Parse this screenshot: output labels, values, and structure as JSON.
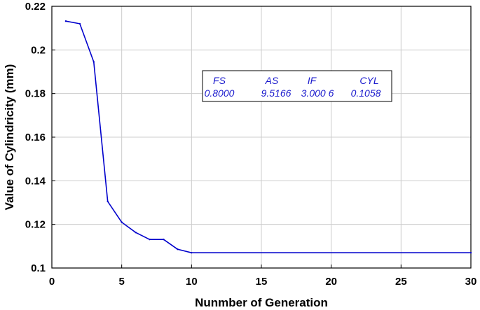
{
  "chart_data": {
    "type": "line",
    "title": "",
    "xlabel": "Nunmber of Generation",
    "ylabel": "Value of Cylindricity (mm)",
    "xlim": [
      0,
      30
    ],
    "ylim": [
      0.1,
      0.22
    ],
    "xticks": [
      "0",
      "5",
      "10",
      "15",
      "20",
      "25",
      "30"
    ],
    "yticks": [
      "0.1",
      "0.12",
      "0.14",
      "0.16",
      "0.18",
      "0.2",
      "0.22"
    ],
    "grid": true,
    "series": [
      {
        "color": "#0000cc",
        "x": [
          1,
          2,
          3,
          4,
          5,
          6,
          7,
          8,
          9,
          10,
          30
        ],
        "y": [
          0.2132,
          0.212,
          0.1945,
          0.1305,
          0.121,
          0.1163,
          0.1131,
          0.1131,
          0.1086,
          0.107,
          0.107
        ]
      }
    ],
    "annotation": {
      "headers": [
        "FS",
        "AS",
        "IF",
        "CYL"
      ],
      "values": [
        "0.8000",
        "9.5166",
        "3.000 6",
        "0.1058"
      ]
    }
  }
}
